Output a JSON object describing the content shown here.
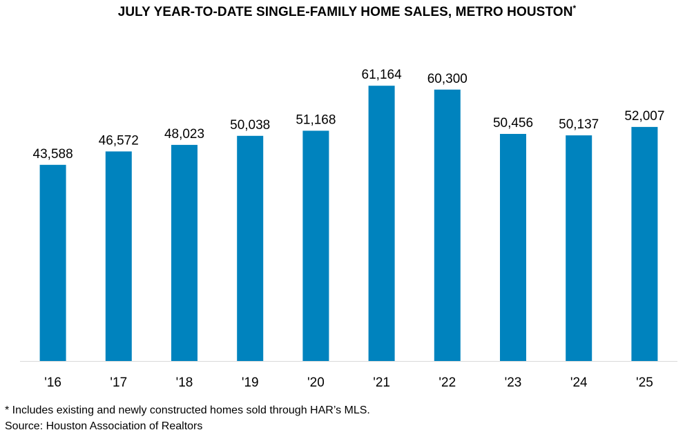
{
  "chart_data": {
    "type": "bar",
    "title": "JULY YEAR-TO-DATE SINGLE-FAMILY HOME SALES, METRO HOUSTON",
    "title_marker": "*",
    "categories": [
      "'16",
      "'17",
      "'18",
      "'19",
      "'20",
      "'21",
      "'22",
      "'23",
      "'24",
      "'25"
    ],
    "values": [
      43588,
      46572,
      48023,
      50038,
      51168,
      61164,
      60300,
      50456,
      50137,
      52007
    ],
    "value_labels": [
      "43,588",
      "46,572",
      "48,023",
      "50,038",
      "51,168",
      "61,164",
      "60,300",
      "50,456",
      "50,137",
      "52,007"
    ],
    "ylim": [
      0,
      70000
    ],
    "grid": false,
    "legend": "none",
    "bar_color": "#0083BE"
  },
  "footnotes": {
    "note": "* Includes existing and newly constructed homes sold through HAR’s MLS.",
    "source": "Source: Houston Association of Realtors"
  }
}
